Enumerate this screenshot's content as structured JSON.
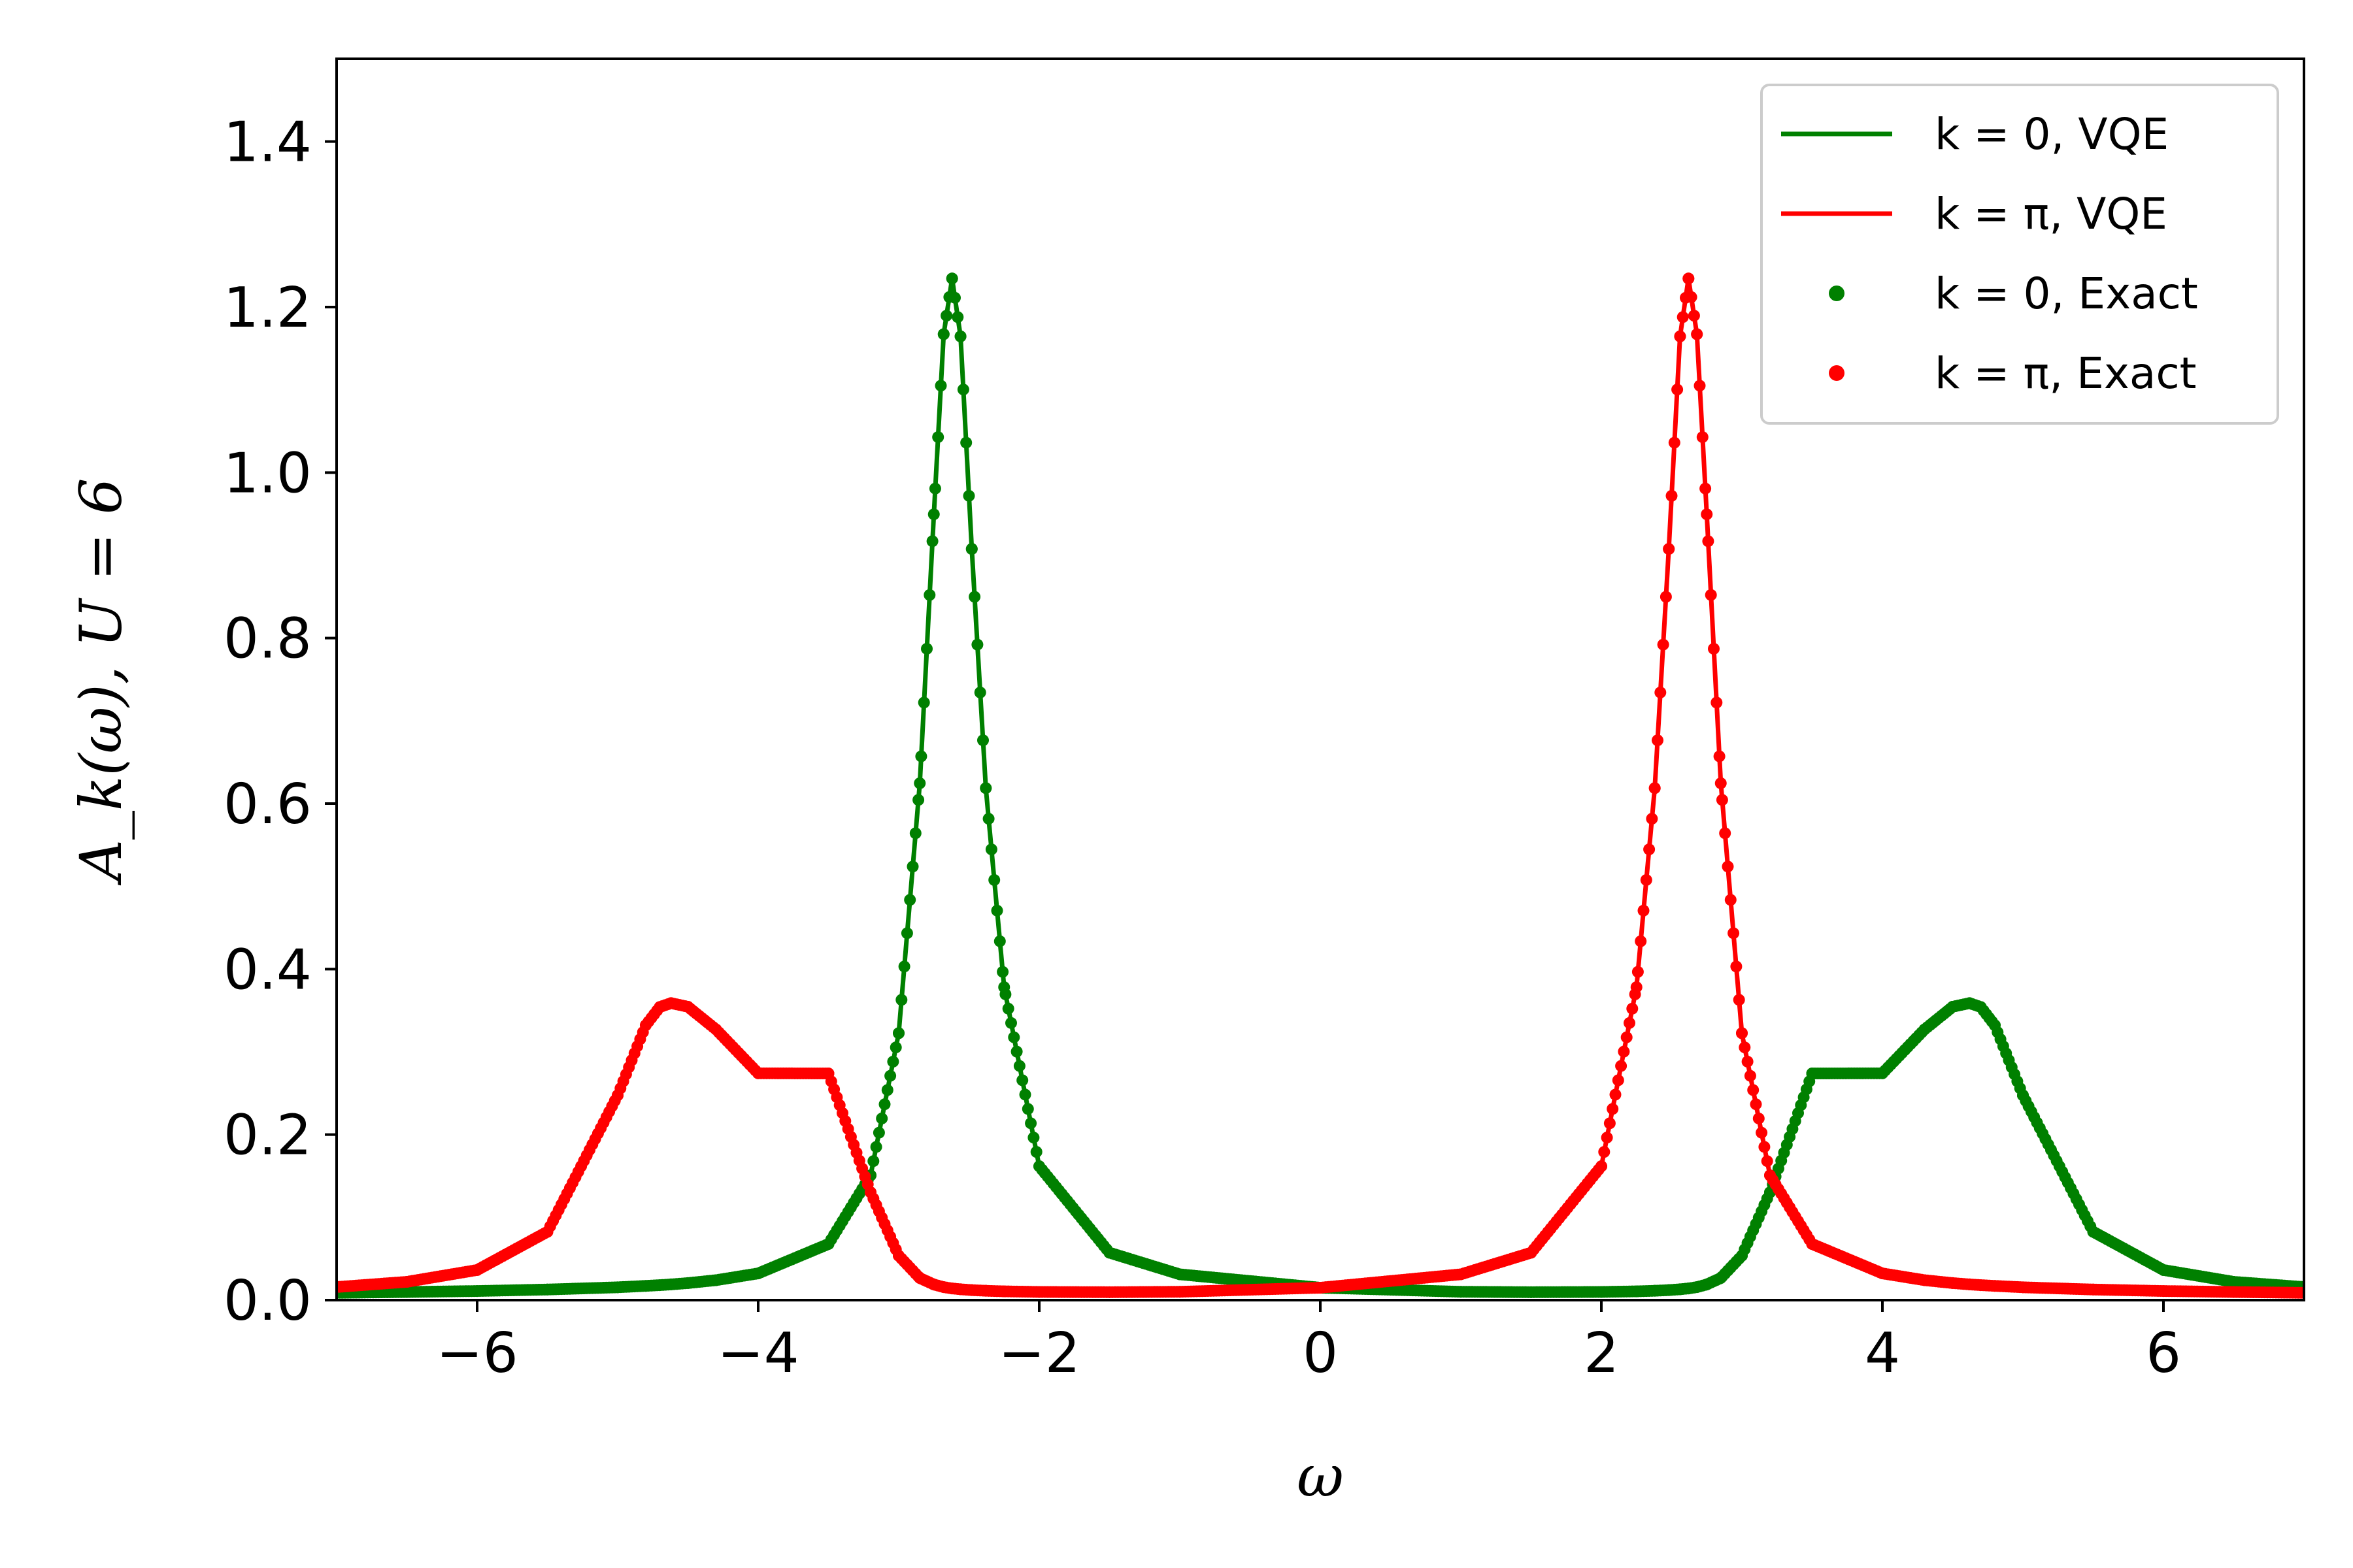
{
  "chart_data": {
    "type": "line",
    "title": "",
    "xlabel": "ω",
    "ylabel": "A_k(ω), U = 6",
    "xlim": [
      -7,
      7
    ],
    "ylim": [
      0,
      1.5
    ],
    "xticks": [
      -6,
      -4,
      -2,
      0,
      2,
      4,
      6
    ],
    "xtick_labels": [
      "−6",
      "−4",
      "−2",
      "0",
      "2",
      "4",
      "6"
    ],
    "yticks": [
      0,
      0.2,
      0.4,
      0.6,
      0.8,
      1.0,
      1.2,
      1.4
    ],
    "ytick_labels": [
      "0.0",
      "0.2",
      "0.4",
      "0.6",
      "0.8",
      "1.0",
      "1.2",
      "1.4"
    ],
    "grid": false,
    "legend_position": "top-right",
    "x": [
      -7.0,
      -6.5,
      -6.0,
      -5.5,
      -5.0,
      -4.8,
      -4.7,
      -4.62,
      -4.5,
      -4.3,
      -4.0,
      -3.5,
      -3.2,
      -3.0,
      -2.85,
      -2.75,
      -2.68,
      -2.62,
      -2.56,
      -2.48,
      -2.38,
      -2.25,
      -2.0,
      -1.5,
      -1.0,
      0.0,
      1.0,
      1.5,
      2.0,
      2.25,
      2.38,
      2.48,
      2.56,
      2.62,
      2.68,
      2.75,
      2.85,
      3.0,
      3.2,
      3.5,
      4.0,
      4.3,
      4.5,
      4.62,
      4.7,
      4.8,
      5.0,
      5.5,
      6.0,
      6.5,
      7.0
    ],
    "series": [
      {
        "name": "k = 0, VQE",
        "style": "line",
        "color": "#008000",
        "values": [
          0.0088,
          0.0098,
          0.011,
          0.0128,
          0.0155,
          0.0172,
          0.0181,
          0.019,
          0.0206,
          0.0241,
          0.0323,
          0.0678,
          0.1508,
          0.3226,
          0.6246,
          0.9496,
          1.1672,
          1.2345,
          1.1646,
          0.9077,
          0.6187,
          0.3782,
          0.1618,
          0.0573,
          0.0312,
          0.015,
          0.0101,
          0.0096,
          0.0099,
          0.0106,
          0.0113,
          0.0121,
          0.0131,
          0.0141,
          0.0157,
          0.0189,
          0.0267,
          0.0537,
          0.1303,
          0.2739,
          0.2741,
          0.3271,
          0.3545,
          0.3589,
          0.3542,
          0.3322,
          0.2475,
          0.0826,
          0.0364,
          0.0221,
          0.0158
        ]
      },
      {
        "name": "k = π, VQE",
        "style": "line",
        "color": "#ff0000",
        "values": [
          0.0158,
          0.0221,
          0.0364,
          0.0826,
          0.2475,
          0.3322,
          0.3542,
          0.3589,
          0.3545,
          0.3271,
          0.2741,
          0.2739,
          0.1303,
          0.0537,
          0.0267,
          0.0189,
          0.0157,
          0.0141,
          0.0131,
          0.0121,
          0.0113,
          0.0106,
          0.0099,
          0.0096,
          0.0101,
          0.015,
          0.0312,
          0.0573,
          0.1618,
          0.3782,
          0.6187,
          0.9077,
          1.1646,
          1.2345,
          1.1672,
          0.9496,
          0.6246,
          0.3226,
          0.1508,
          0.0678,
          0.0323,
          0.0241,
          0.0206,
          0.019,
          0.0181,
          0.0172,
          0.0155,
          0.0128,
          0.011,
          0.0098,
          0.0088
        ]
      },
      {
        "name": "k = 0, Exact",
        "style": "dots",
        "color": "#008000",
        "values": [
          0.0088,
          0.0098,
          0.011,
          0.0128,
          0.0155,
          0.0172,
          0.0181,
          0.019,
          0.0206,
          0.0241,
          0.0323,
          0.0678,
          0.1508,
          0.3226,
          0.6246,
          0.9496,
          1.1672,
          1.2345,
          1.1646,
          0.9077,
          0.6187,
          0.3782,
          0.1618,
          0.0573,
          0.0312,
          0.015,
          0.0101,
          0.0096,
          0.0099,
          0.0106,
          0.0113,
          0.0121,
          0.0131,
          0.0141,
          0.0157,
          0.0189,
          0.0267,
          0.0537,
          0.1303,
          0.2739,
          0.2741,
          0.3271,
          0.3545,
          0.3589,
          0.3542,
          0.3322,
          0.2475,
          0.0826,
          0.0364,
          0.0221,
          0.0158
        ]
      },
      {
        "name": "k = π, Exact",
        "style": "dots",
        "color": "#ff0000",
        "values": [
          0.0158,
          0.0221,
          0.0364,
          0.0826,
          0.2475,
          0.3322,
          0.3542,
          0.3589,
          0.3545,
          0.3271,
          0.2741,
          0.2739,
          0.1303,
          0.0537,
          0.0267,
          0.0189,
          0.0157,
          0.0141,
          0.0131,
          0.0121,
          0.0113,
          0.0106,
          0.0099,
          0.0096,
          0.0101,
          0.015,
          0.0312,
          0.0573,
          0.1618,
          0.3782,
          0.6187,
          0.9077,
          1.1646,
          1.2345,
          1.1672,
          0.9496,
          0.6246,
          0.3226,
          0.1508,
          0.0678,
          0.0323,
          0.0241,
          0.0206,
          0.019,
          0.0181,
          0.0172,
          0.0155,
          0.0128,
          0.011,
          0.0098,
          0.0088
        ]
      }
    ]
  }
}
